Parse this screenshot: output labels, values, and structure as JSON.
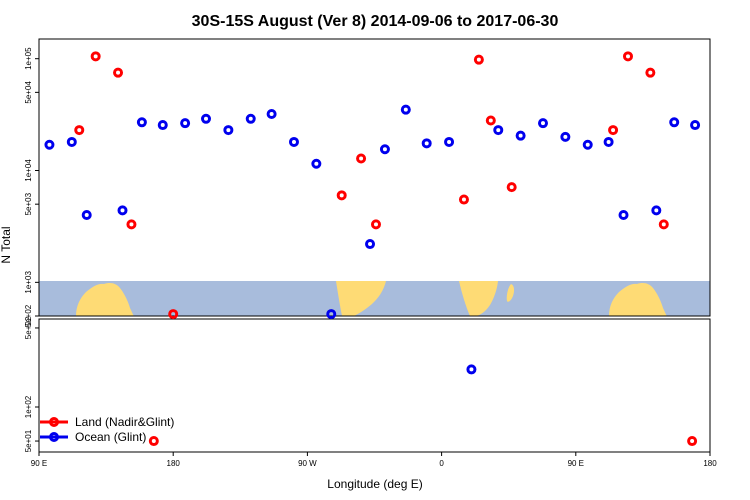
{
  "chart_data": {
    "type": "scatter",
    "title": "30S-15S August (Ver 8)   2014-09-06 to 2017-06-30",
    "xlabel": "Longitude (deg E)",
    "ylabel": "N Total",
    "x_ticks": [
      {
        "lon": 90,
        "label": "90 E"
      },
      {
        "lon": 180,
        "label": "180"
      },
      {
        "lon": 270,
        "label": "90 W"
      },
      {
        "lon": 360,
        "label": "0"
      },
      {
        "lon": 450,
        "label": "90 E"
      },
      {
        "lon": 540,
        "label": "180"
      }
    ],
    "xlim": [
      90,
      540
    ],
    "upper_panel": {
      "scale": "log",
      "ylim": [
        500,
        150000
      ],
      "y_ticks": [
        {
          "value": 500,
          "label": "5e+02"
        },
        {
          "value": 1000,
          "label": "1e+03"
        },
        {
          "value": 5000,
          "label": "5e+03"
        },
        {
          "value": 10000,
          "label": "1e+04"
        },
        {
          "value": 50000,
          "label": "5e+04"
        },
        {
          "value": 100000,
          "label": "1e+05"
        }
      ]
    },
    "lower_panel": {
      "scale": "log",
      "ylim": [
        40,
        600
      ],
      "y_ticks": [
        {
          "value": 50,
          "label": "5e+01"
        },
        {
          "value": 100,
          "label": "1e+02"
        },
        {
          "value": 500,
          "label": "5e+02"
        }
      ]
    },
    "series": [
      {
        "name": "Land (Nadir&Glint)",
        "color": "#ff0000",
        "points": [
          {
            "x": 117,
            "y": 23000
          },
          {
            "x": 128,
            "y": 105000
          },
          {
            "x": 143,
            "y": 75000
          },
          {
            "x": 152,
            "y": 3300
          },
          {
            "x": 180,
            "y": 520
          },
          {
            "x": 293,
            "y": 6000
          },
          {
            "x": 306,
            "y": 12800
          },
          {
            "x": 316,
            "y": 3300
          },
          {
            "x": 375,
            "y": 5500
          },
          {
            "x": 385,
            "y": 98000
          },
          {
            "x": 393,
            "y": 28000
          },
          {
            "x": 407,
            "y": 7100
          },
          {
            "x": 475,
            "y": 23000
          },
          {
            "x": 485,
            "y": 105000
          },
          {
            "x": 500,
            "y": 75000
          },
          {
            "x": 509,
            "y": 3300
          },
          {
            "x": 167,
            "y": 50
          },
          {
            "x": 528,
            "y": 50
          }
        ]
      },
      {
        "name": "Ocean (Glint)",
        "color": "#0000ee",
        "points": [
          {
            "x": 97,
            "y": 17000
          },
          {
            "x": 112,
            "y": 18000
          },
          {
            "x": 122,
            "y": 4000
          },
          {
            "x": 146,
            "y": 4400
          },
          {
            "x": 159,
            "y": 27000
          },
          {
            "x": 173,
            "y": 25500
          },
          {
            "x": 188,
            "y": 26500
          },
          {
            "x": 202,
            "y": 29000
          },
          {
            "x": 217,
            "y": 23000
          },
          {
            "x": 232,
            "y": 29000
          },
          {
            "x": 246,
            "y": 32000
          },
          {
            "x": 261,
            "y": 18000
          },
          {
            "x": 276,
            "y": 11500
          },
          {
            "x": 286,
            "y": 520
          },
          {
            "x": 312,
            "y": 2200
          },
          {
            "x": 322,
            "y": 15500
          },
          {
            "x": 336,
            "y": 35000
          },
          {
            "x": 350,
            "y": 17500
          },
          {
            "x": 365,
            "y": 18000
          },
          {
            "x": 380,
            "y": 215
          },
          {
            "x": 398,
            "y": 23000
          },
          {
            "x": 413,
            "y": 20500
          },
          {
            "x": 428,
            "y": 26500
          },
          {
            "x": 443,
            "y": 20000
          },
          {
            "x": 458,
            "y": 17000
          },
          {
            "x": 472,
            "y": 18000
          },
          {
            "x": 482,
            "y": 4000
          },
          {
            "x": 504,
            "y": 4400
          },
          {
            "x": 516,
            "y": 27000
          },
          {
            "x": 530,
            "y": 25500
          }
        ]
      }
    ],
    "legend": {
      "placement": "bottom-left",
      "entries": [
        {
          "label": "Land (Nadir&Glint)",
          "color": "#ff0000"
        },
        {
          "label": "Ocean (Glint)",
          "color": "#0000ee"
        }
      ]
    },
    "background": {
      "ocean_color": "#a8bcdc",
      "land_color": "#fedb75"
    }
  }
}
